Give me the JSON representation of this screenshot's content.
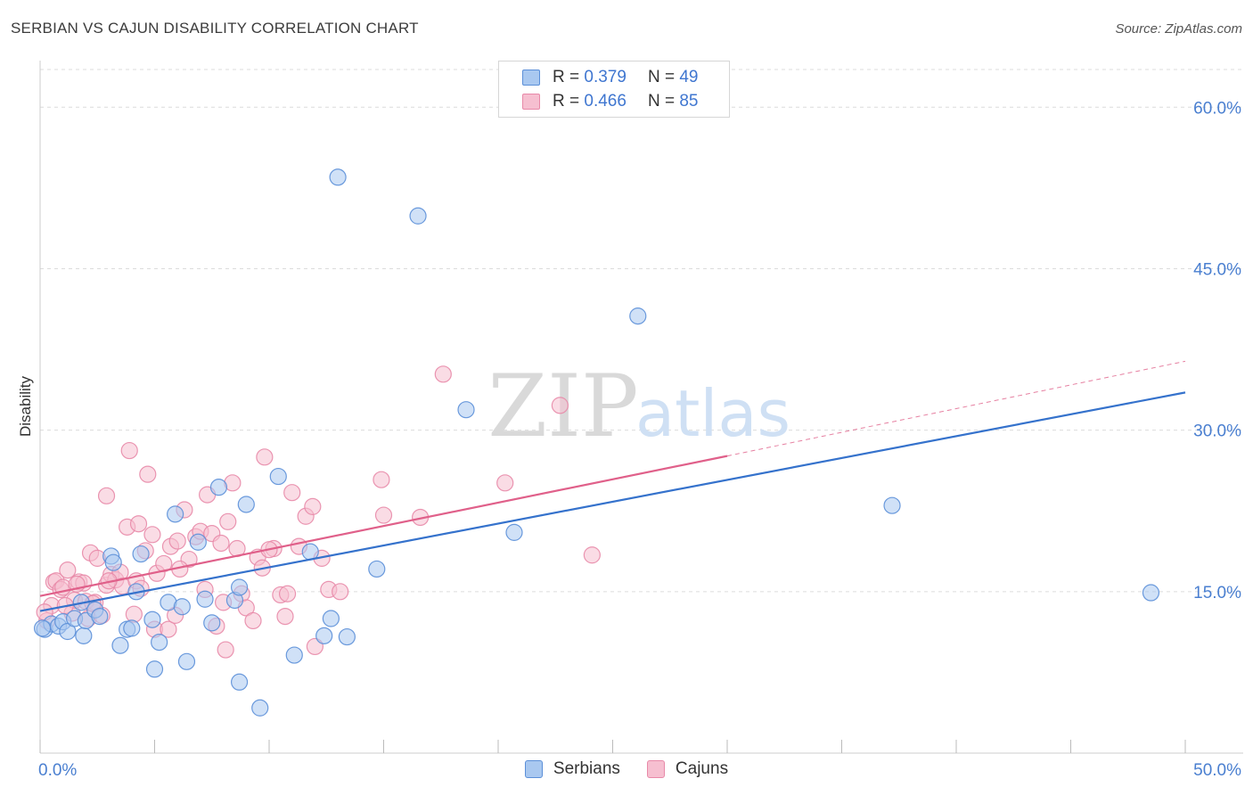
{
  "title": "SERBIAN VS CAJUN DISABILITY CORRELATION CHART",
  "source": "Source: ZipAtlas.com",
  "watermark": {
    "zip": "ZIP",
    "atlas": "atlas"
  },
  "legend": {
    "serbians": {
      "r_label": "R =",
      "r_value": "0.379",
      "n_label": "N =",
      "n_value": "49"
    },
    "cajuns": {
      "r_label": "R =",
      "r_value": "0.466",
      "n_label": "N =",
      "n_value": "85"
    }
  },
  "colors": {
    "serbians_fill": "#a9c8f0",
    "serbians_stroke": "#5b8fd8",
    "serbians_line": "#3572cc",
    "cajuns_fill": "#f6bfd0",
    "cajuns_stroke": "#e889a8",
    "cajuns_line": "#e0608a",
    "axis_label": "#4a7fd0",
    "grid": "#dcdcdc"
  },
  "chart_data": {
    "type": "scatter",
    "title": "SERBIAN VS CAJUN DISABILITY CORRELATION CHART",
    "xlabel": "",
    "ylabel": "Disability",
    "xlim": [
      0,
      50
    ],
    "ylim": [
      0,
      63.5
    ],
    "x_tick_labels": [
      {
        "value": 0,
        "label": "0.0%"
      },
      {
        "value": 50,
        "label": "50.0%"
      }
    ],
    "y_tick_labels": [
      {
        "value": 15,
        "label": "15.0%"
      },
      {
        "value": 30,
        "label": "30.0%"
      },
      {
        "value": 45,
        "label": "45.0%"
      },
      {
        "value": 60,
        "label": "60.0%"
      }
    ],
    "x_minor_ticks": [
      0,
      5,
      10,
      15,
      20,
      25,
      30,
      35,
      40,
      45,
      50
    ],
    "grid": true,
    "series": [
      {
        "name": "Serbians",
        "points": [
          [
            0.2,
            11.5
          ],
          [
            0.5,
            12.0
          ],
          [
            0.8,
            11.8
          ],
          [
            1.0,
            12.2
          ],
          [
            1.2,
            11.3
          ],
          [
            1.5,
            12.5
          ],
          [
            1.8,
            14.0
          ],
          [
            1.9,
            10.9
          ],
          [
            2.0,
            12.3
          ],
          [
            2.4,
            13.3
          ],
          [
            2.6,
            12.7
          ],
          [
            3.1,
            18.3
          ],
          [
            3.2,
            17.7
          ],
          [
            3.5,
            10.0
          ],
          [
            3.8,
            11.5
          ],
          [
            4.0,
            11.6
          ],
          [
            4.2,
            15.0
          ],
          [
            4.4,
            18.5
          ],
          [
            4.9,
            12.4
          ],
          [
            5.0,
            7.8
          ],
          [
            5.2,
            10.3
          ],
          [
            5.6,
            14.0
          ],
          [
            5.9,
            22.2
          ],
          [
            6.2,
            13.6
          ],
          [
            6.4,
            8.5
          ],
          [
            6.9,
            19.6
          ],
          [
            7.2,
            14.3
          ],
          [
            7.5,
            12.1
          ],
          [
            7.8,
            24.7
          ],
          [
            8.5,
            14.2
          ],
          [
            8.7,
            15.4
          ],
          [
            8.7,
            6.6
          ],
          [
            9.0,
            23.1
          ],
          [
            9.6,
            4.2
          ],
          [
            10.4,
            25.7
          ],
          [
            11.1,
            9.1
          ],
          [
            11.8,
            18.7
          ],
          [
            12.4,
            10.9
          ],
          [
            12.7,
            12.5
          ],
          [
            13.0,
            53.5
          ],
          [
            13.4,
            10.8
          ],
          [
            14.7,
            17.1
          ],
          [
            16.5,
            49.9
          ],
          [
            18.6,
            31.9
          ],
          [
            20.7,
            20.5
          ],
          [
            26.1,
            40.6
          ],
          [
            37.2,
            23.0
          ],
          [
            48.5,
            14.9
          ],
          [
            0.1,
            11.6
          ]
        ],
        "trend": {
          "x": [
            0,
            50
          ],
          "y": [
            13.2,
            33.5
          ]
        }
      },
      {
        "name": "Cajuns",
        "points": [
          [
            0.3,
            12.3
          ],
          [
            0.5,
            13.7
          ],
          [
            0.6,
            15.9
          ],
          [
            0.7,
            16.0
          ],
          [
            0.9,
            15.2
          ],
          [
            1.0,
            15.4
          ],
          [
            1.2,
            17.0
          ],
          [
            1.4,
            13.0
          ],
          [
            1.5,
            14.2
          ],
          [
            1.7,
            15.9
          ],
          [
            1.9,
            15.8
          ],
          [
            2.0,
            14.1
          ],
          [
            2.1,
            12.5
          ],
          [
            2.2,
            18.6
          ],
          [
            2.4,
            14.0
          ],
          [
            2.5,
            18.1
          ],
          [
            2.7,
            12.8
          ],
          [
            2.9,
            23.9
          ],
          [
            2.9,
            15.6
          ],
          [
            3.1,
            16.6
          ],
          [
            3.3,
            16.1
          ],
          [
            3.5,
            16.8
          ],
          [
            3.6,
            15.5
          ],
          [
            3.8,
            21.0
          ],
          [
            3.9,
            28.1
          ],
          [
            4.1,
            12.9
          ],
          [
            4.2,
            16.0
          ],
          [
            4.3,
            21.3
          ],
          [
            4.6,
            18.8
          ],
          [
            4.7,
            25.9
          ],
          [
            4.9,
            20.3
          ],
          [
            5.0,
            11.5
          ],
          [
            5.1,
            16.7
          ],
          [
            5.4,
            17.6
          ],
          [
            5.6,
            11.5
          ],
          [
            5.7,
            19.2
          ],
          [
            5.9,
            12.8
          ],
          [
            6.0,
            19.7
          ],
          [
            6.3,
            22.6
          ],
          [
            6.5,
            18.0
          ],
          [
            6.8,
            20.1
          ],
          [
            7.0,
            20.6
          ],
          [
            7.3,
            24.0
          ],
          [
            7.5,
            20.4
          ],
          [
            7.7,
            11.8
          ],
          [
            7.9,
            19.5
          ],
          [
            8.1,
            9.6
          ],
          [
            8.2,
            21.5
          ],
          [
            8.4,
            25.1
          ],
          [
            8.6,
            19.0
          ],
          [
            8.8,
            14.8
          ],
          [
            9.0,
            13.5
          ],
          [
            9.3,
            12.3
          ],
          [
            9.5,
            18.2
          ],
          [
            9.7,
            17.2
          ],
          [
            9.8,
            27.5
          ],
          [
            10.2,
            19.0
          ],
          [
            10.5,
            14.7
          ],
          [
            10.7,
            12.7
          ],
          [
            10.8,
            14.8
          ],
          [
            11.0,
            24.2
          ],
          [
            11.3,
            19.2
          ],
          [
            11.6,
            22.0
          ],
          [
            11.9,
            22.9
          ],
          [
            12.0,
            9.9
          ],
          [
            12.3,
            18.1
          ],
          [
            12.6,
            15.2
          ],
          [
            13.1,
            15.0
          ],
          [
            14.9,
            25.4
          ],
          [
            15.0,
            22.1
          ],
          [
            16.6,
            21.9
          ],
          [
            17.6,
            35.2
          ],
          [
            20.3,
            25.1
          ],
          [
            22.7,
            32.3
          ],
          [
            24.1,
            18.4
          ],
          [
            0.2,
            13.1
          ],
          [
            1.1,
            13.7
          ],
          [
            1.6,
            15.7
          ],
          [
            2.3,
            13.9
          ],
          [
            3.0,
            16.0
          ],
          [
            4.4,
            15.3
          ],
          [
            6.1,
            17.1
          ],
          [
            7.2,
            15.2
          ],
          [
            8.0,
            14.0
          ],
          [
            10.0,
            18.9
          ]
        ],
        "trend": {
          "x": [
            0,
            30
          ],
          "y": [
            14.6,
            27.6
          ]
        },
        "trend_dashed": {
          "x": [
            30,
            50
          ],
          "y": [
            27.6,
            36.4
          ]
        }
      }
    ]
  }
}
